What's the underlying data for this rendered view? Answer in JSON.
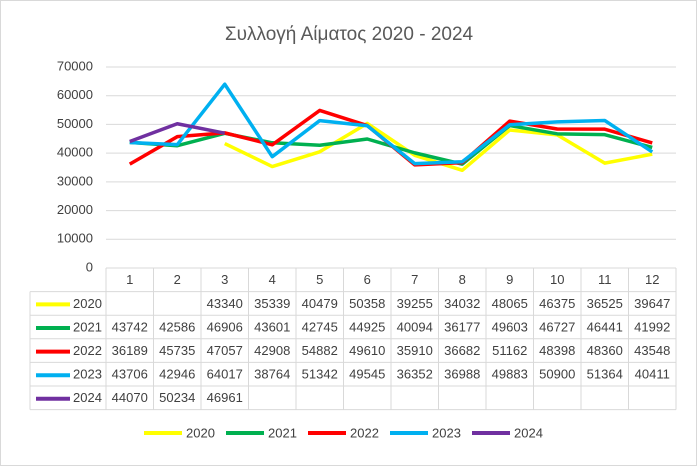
{
  "chart_data": {
    "type": "line",
    "title": "Συλλογή Αίματος 2020 - 2024",
    "categories": [
      "1",
      "2",
      "3",
      "4",
      "5",
      "6",
      "7",
      "8",
      "9",
      "10",
      "11",
      "12"
    ],
    "series": [
      {
        "name": "2020",
        "color": "#ffff00",
        "values": [
          null,
          null,
          43340,
          35339,
          40479,
          50358,
          39255,
          34032,
          48065,
          46375,
          36525,
          39647
        ]
      },
      {
        "name": "2021",
        "color": "#00b050",
        "values": [
          43742,
          42586,
          46906,
          43601,
          42745,
          44925,
          40094,
          36177,
          49603,
          46727,
          46441,
          41992
        ]
      },
      {
        "name": "2022",
        "color": "#ff0000",
        "values": [
          36189,
          45735,
          47057,
          42908,
          54882,
          49610,
          35910,
          36682,
          51162,
          48398,
          48360,
          43548
        ]
      },
      {
        "name": "2023",
        "color": "#00b0f0",
        "values": [
          43706,
          42946,
          64017,
          38764,
          51342,
          49545,
          36352,
          36988,
          49883,
          50900,
          51364,
          40411
        ]
      },
      {
        "name": "2024",
        "color": "#7030a0",
        "values": [
          44070,
          50234,
          46961,
          null,
          null,
          null,
          null,
          null,
          null,
          null,
          null,
          null
        ]
      }
    ],
    "ylim": [
      0,
      70000
    ],
    "yticks": [
      0,
      10000,
      20000,
      30000,
      40000,
      50000,
      60000,
      70000
    ],
    "grid": true,
    "legend": "bottom",
    "data_table": true
  }
}
